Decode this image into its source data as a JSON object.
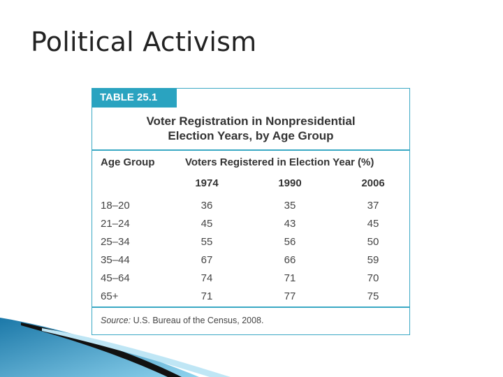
{
  "slide": {
    "title": "Political Activism"
  },
  "table": {
    "tag": "TABLE 25.1",
    "heading_line1": "Voter Registration in Nonpresidential",
    "heading_line2": "Election Years, by Age Group",
    "col_age": "Age Group",
    "col_voters": "Voters Registered in Election Year (%)",
    "years": [
      "1974",
      "1990",
      "2006"
    ],
    "rows": [
      {
        "age": "18–20",
        "v": [
          "36",
          "35",
          "37"
        ]
      },
      {
        "age": "21–24",
        "v": [
          "45",
          "43",
          "45"
        ]
      },
      {
        "age": "25–34",
        "v": [
          "55",
          "56",
          "50"
        ]
      },
      {
        "age": "35–44",
        "v": [
          "67",
          "66",
          "59"
        ]
      },
      {
        "age": "45–64",
        "v": [
          "74",
          "71",
          "70"
        ]
      },
      {
        "age": "65+",
        "v": [
          "71",
          "77",
          "75"
        ]
      }
    ],
    "source_label": "Source:",
    "source_text": " U.S. Bureau of the Census, 2008."
  },
  "colors": {
    "accent": "#2aa3c0",
    "text": "#333333"
  }
}
